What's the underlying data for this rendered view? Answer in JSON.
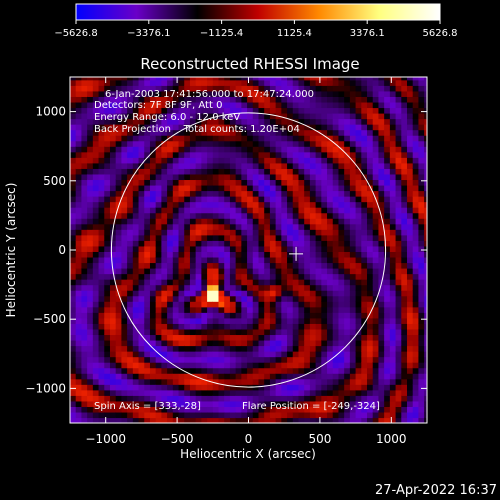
{
  "chart_data": {
    "type": "heatmap",
    "title": "Reconstructed RHESSI Image",
    "xlabel": "Heliocentric X (arcsec)",
    "ylabel": "Heliocentric Y (arcsec)",
    "xlim": [
      -1250,
      1250
    ],
    "ylim": [
      -1250,
      1250
    ],
    "xticks": [
      -1000,
      -500,
      0,
      500,
      1000
    ],
    "yticks": [
      -1000,
      -500,
      0,
      500,
      1000
    ],
    "colorbar": {
      "range": [
        -5626.8,
        5626.8
      ],
      "tick_values": [
        -5626.8,
        -3376.1,
        -1125.4,
        1125.4,
        3376.1,
        5626.8
      ],
      "tick_labels": [
        "−5626.8",
        "−3376.1",
        "−1125.4",
        "1125.4",
        "3376.1",
        "5626.8"
      ],
      "colors": [
        "#0000ff",
        "#6a00c8",
        "#000000",
        "#c00000",
        "#ff8800",
        "#ffff80",
        "#ffffff"
      ]
    },
    "annotations": [
      "6-Jan-2003 17:41:56.000 to 17:47:24.000",
      "Detectors: 7F 8F 9F, Att 0",
      "Energy Range: 6.0 - 12.0 keV",
      "Back Projection    Total counts: 1.20E+04"
    ],
    "spin_axis_label": "Spin Axis = [333,-28]",
    "flare_position_label": "Flare Position = [-249,-324]",
    "spin_axis": [
      333,
      -28
    ],
    "flare_position": [
      -249,
      -324
    ],
    "solar_limb_radius": 960,
    "grid": false
  },
  "footer": {
    "timestamp": "27-Apr-2022 16:37"
  }
}
